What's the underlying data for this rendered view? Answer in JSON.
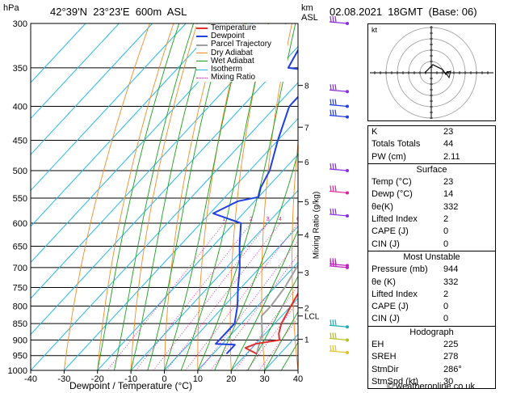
{
  "header": {
    "location": "42°39'N  23°23'E  600m  ASL",
    "datetime": "02.08.2021  18GMT  (Base: 06)",
    "hpa_label": "hPa",
    "km_label": "km",
    "asl_label": "ASL"
  },
  "legend": [
    "Temperature",
    "Dewpoint",
    "Parcel Trajectory",
    "Dry Adiabat",
    "Wet Adiabat",
    "Isotherm",
    "Mixing Ratio"
  ],
  "colors": {
    "temperature": "#e03030",
    "dewpoint": "#2040e0",
    "parcel": "#a0a0a0",
    "dry_adiabat": "#f08c28",
    "wet_adiabat": "#1aa01a",
    "isotherm": "#29b6e6",
    "mixing_ratio": "#e0209a"
  },
  "chart_data": {
    "type": "skew-t",
    "xlabel": "Dewpoint / Temperature (°C)",
    "ylabel": "Mixing Ratio (g/kg)",
    "x_ticks": [
      -40,
      -30,
      -20,
      -10,
      0,
      10,
      20,
      30,
      40
    ],
    "pressure_levels": [
      300,
      350,
      400,
      450,
      500,
      550,
      600,
      650,
      700,
      750,
      800,
      850,
      900,
      950,
      1000
    ],
    "km_ticks": [
      {
        "label": "8",
        "p": 372
      },
      {
        "label": "7",
        "p": 430
      },
      {
        "label": "6",
        "p": 485
      },
      {
        "label": "5",
        "p": 557
      },
      {
        "label": "4",
        "p": 625
      },
      {
        "label": "3",
        "p": 712
      },
      {
        "label": "2",
        "p": 805
      },
      {
        "label": "LCL",
        "p": 828
      },
      {
        "label": "1",
        "p": 898
      }
    ],
    "mixing_ratio_labels": [
      "1",
      "2",
      "3",
      "4",
      "6",
      "8",
      "10",
      "16",
      "20",
      "25"
    ],
    "temperature": [
      {
        "p": 300,
        "t": -30
      },
      {
        "p": 350,
        "t": -21
      },
      {
        "p": 400,
        "t": -15
      },
      {
        "p": 450,
        "t": -8
      },
      {
        "p": 500,
        "t": -3
      },
      {
        "p": 550,
        "t": 1
      },
      {
        "p": 600,
        "t": 5
      },
      {
        "p": 650,
        "t": 10
      },
      {
        "p": 700,
        "t": 14
      },
      {
        "p": 750,
        "t": 18
      },
      {
        "p": 800,
        "t": 20
      },
      {
        "p": 850,
        "t": 22
      },
      {
        "p": 880,
        "t": 24
      },
      {
        "p": 900,
        "t": 26
      },
      {
        "p": 912,
        "t": 20
      },
      {
        "p": 925,
        "t": 18
      },
      {
        "p": 944,
        "t": 23
      }
    ],
    "dewpoint": [
      {
        "p": 300,
        "t": -52
      },
      {
        "p": 350,
        "t": -47
      },
      {
        "p": 355,
        "t": -36
      },
      {
        "p": 400,
        "t": -36
      },
      {
        "p": 450,
        "t": -30
      },
      {
        "p": 500,
        "t": -24
      },
      {
        "p": 530,
        "t": -22
      },
      {
        "p": 548,
        "t": -20
      },
      {
        "p": 556,
        "t": -25
      },
      {
        "p": 580,
        "t": -29
      },
      {
        "p": 600,
        "t": -18
      },
      {
        "p": 650,
        "t": -12
      },
      {
        "p": 700,
        "t": -6
      },
      {
        "p": 750,
        "t": -1
      },
      {
        "p": 800,
        "t": 4
      },
      {
        "p": 850,
        "t": 8
      },
      {
        "p": 912,
        "t": 8
      },
      {
        "p": 915,
        "t": 14
      },
      {
        "p": 944,
        "t": 14
      }
    ],
    "parcel": [
      {
        "p": 300,
        "t": -38
      },
      {
        "p": 350,
        "t": -25
      },
      {
        "p": 400,
        "t": -16
      },
      {
        "p": 450,
        "t": -9
      },
      {
        "p": 500,
        "t": -3
      },
      {
        "p": 550,
        "t": 2
      },
      {
        "p": 600,
        "t": 6
      },
      {
        "p": 650,
        "t": 9
      },
      {
        "p": 700,
        "t": 11
      },
      {
        "p": 750,
        "t": 13
      },
      {
        "p": 800,
        "t": 14
      },
      {
        "p": 828,
        "t": 14
      },
      {
        "p": 880,
        "t": 19
      },
      {
        "p": 944,
        "t": 23
      }
    ]
  },
  "indices": {
    "k_label": "K",
    "k": "23",
    "tt_label": "Totals Totals",
    "tt": "44",
    "pw_label": "PW (cm)",
    "pw": "2.11"
  },
  "surface": {
    "title": "Surface",
    "rows": [
      {
        "label": "Temp (°C)",
        "value": "23"
      },
      {
        "label": "Dewp (°C)",
        "value": "14"
      },
      {
        "label": "θe(K)",
        "value": "332"
      },
      {
        "label": "Lifted Index",
        "value": "2"
      },
      {
        "label": "CAPE (J)",
        "value": "0"
      },
      {
        "label": "CIN (J)",
        "value": "0"
      }
    ]
  },
  "most_unstable": {
    "title": "Most Unstable",
    "rows": [
      {
        "label": "Pressure (mb)",
        "value": "944"
      },
      {
        "label": "θe (K)",
        "value": "332"
      },
      {
        "label": "Lifted Index",
        "value": "2"
      },
      {
        "label": "CAPE (J)",
        "value": "0"
      },
      {
        "label": "CIN (J)",
        "value": "0"
      }
    ]
  },
  "hodograph": {
    "title": "Hodograph",
    "label": "kt",
    "rows": [
      {
        "label": "EH",
        "value": "225"
      },
      {
        "label": "SREH",
        "value": "278"
      },
      {
        "label": "StmDir",
        "value": "286°"
      },
      {
        "label": "StmSpd (kt)",
        "value": "30"
      }
    ]
  },
  "footer": "© weatheronline.co.uk"
}
